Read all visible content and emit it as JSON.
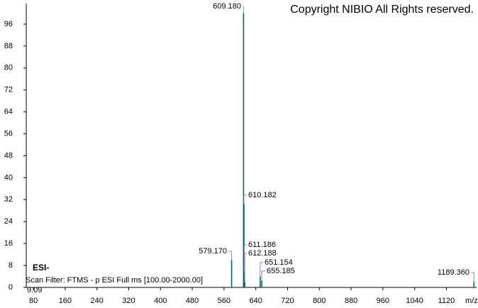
{
  "chart_data": {
    "type": "stem",
    "copyright": "Copyright NIBIO All Rights reserved.",
    "ionization": "ESI-",
    "scan_filter": "Scan Filter: FTMS - p ESI Full ms [100.00-2000.00]",
    "retention_label": "9.09",
    "x_axis_label": "m/z",
    "color": "#006b5e",
    "label_color": "#1c1c8e",
    "x": [
      579.17,
      609.18,
      610.182,
      611.186,
      612.188,
      651.154,
      655.185,
      1189.36
    ],
    "x_labels": [
      "579.170",
      "609.180",
      "610.182",
      "611.186",
      "612.188",
      "651.154",
      "655.185",
      "1189.360"
    ],
    "values": [
      10,
      100,
      30.5,
      6,
      2,
      4,
      2.5,
      2
    ],
    "xlim": [
      62,
      1196
    ],
    "ylim": [
      0,
      103.5
    ],
    "xticks": [
      80,
      160,
      240,
      320,
      400,
      480,
      560,
      640,
      720,
      800,
      880,
      960,
      1040,
      1120
    ],
    "yticks": [
      0,
      8,
      16,
      24,
      32,
      40,
      48,
      56,
      64,
      72,
      80,
      88,
      96
    ]
  }
}
